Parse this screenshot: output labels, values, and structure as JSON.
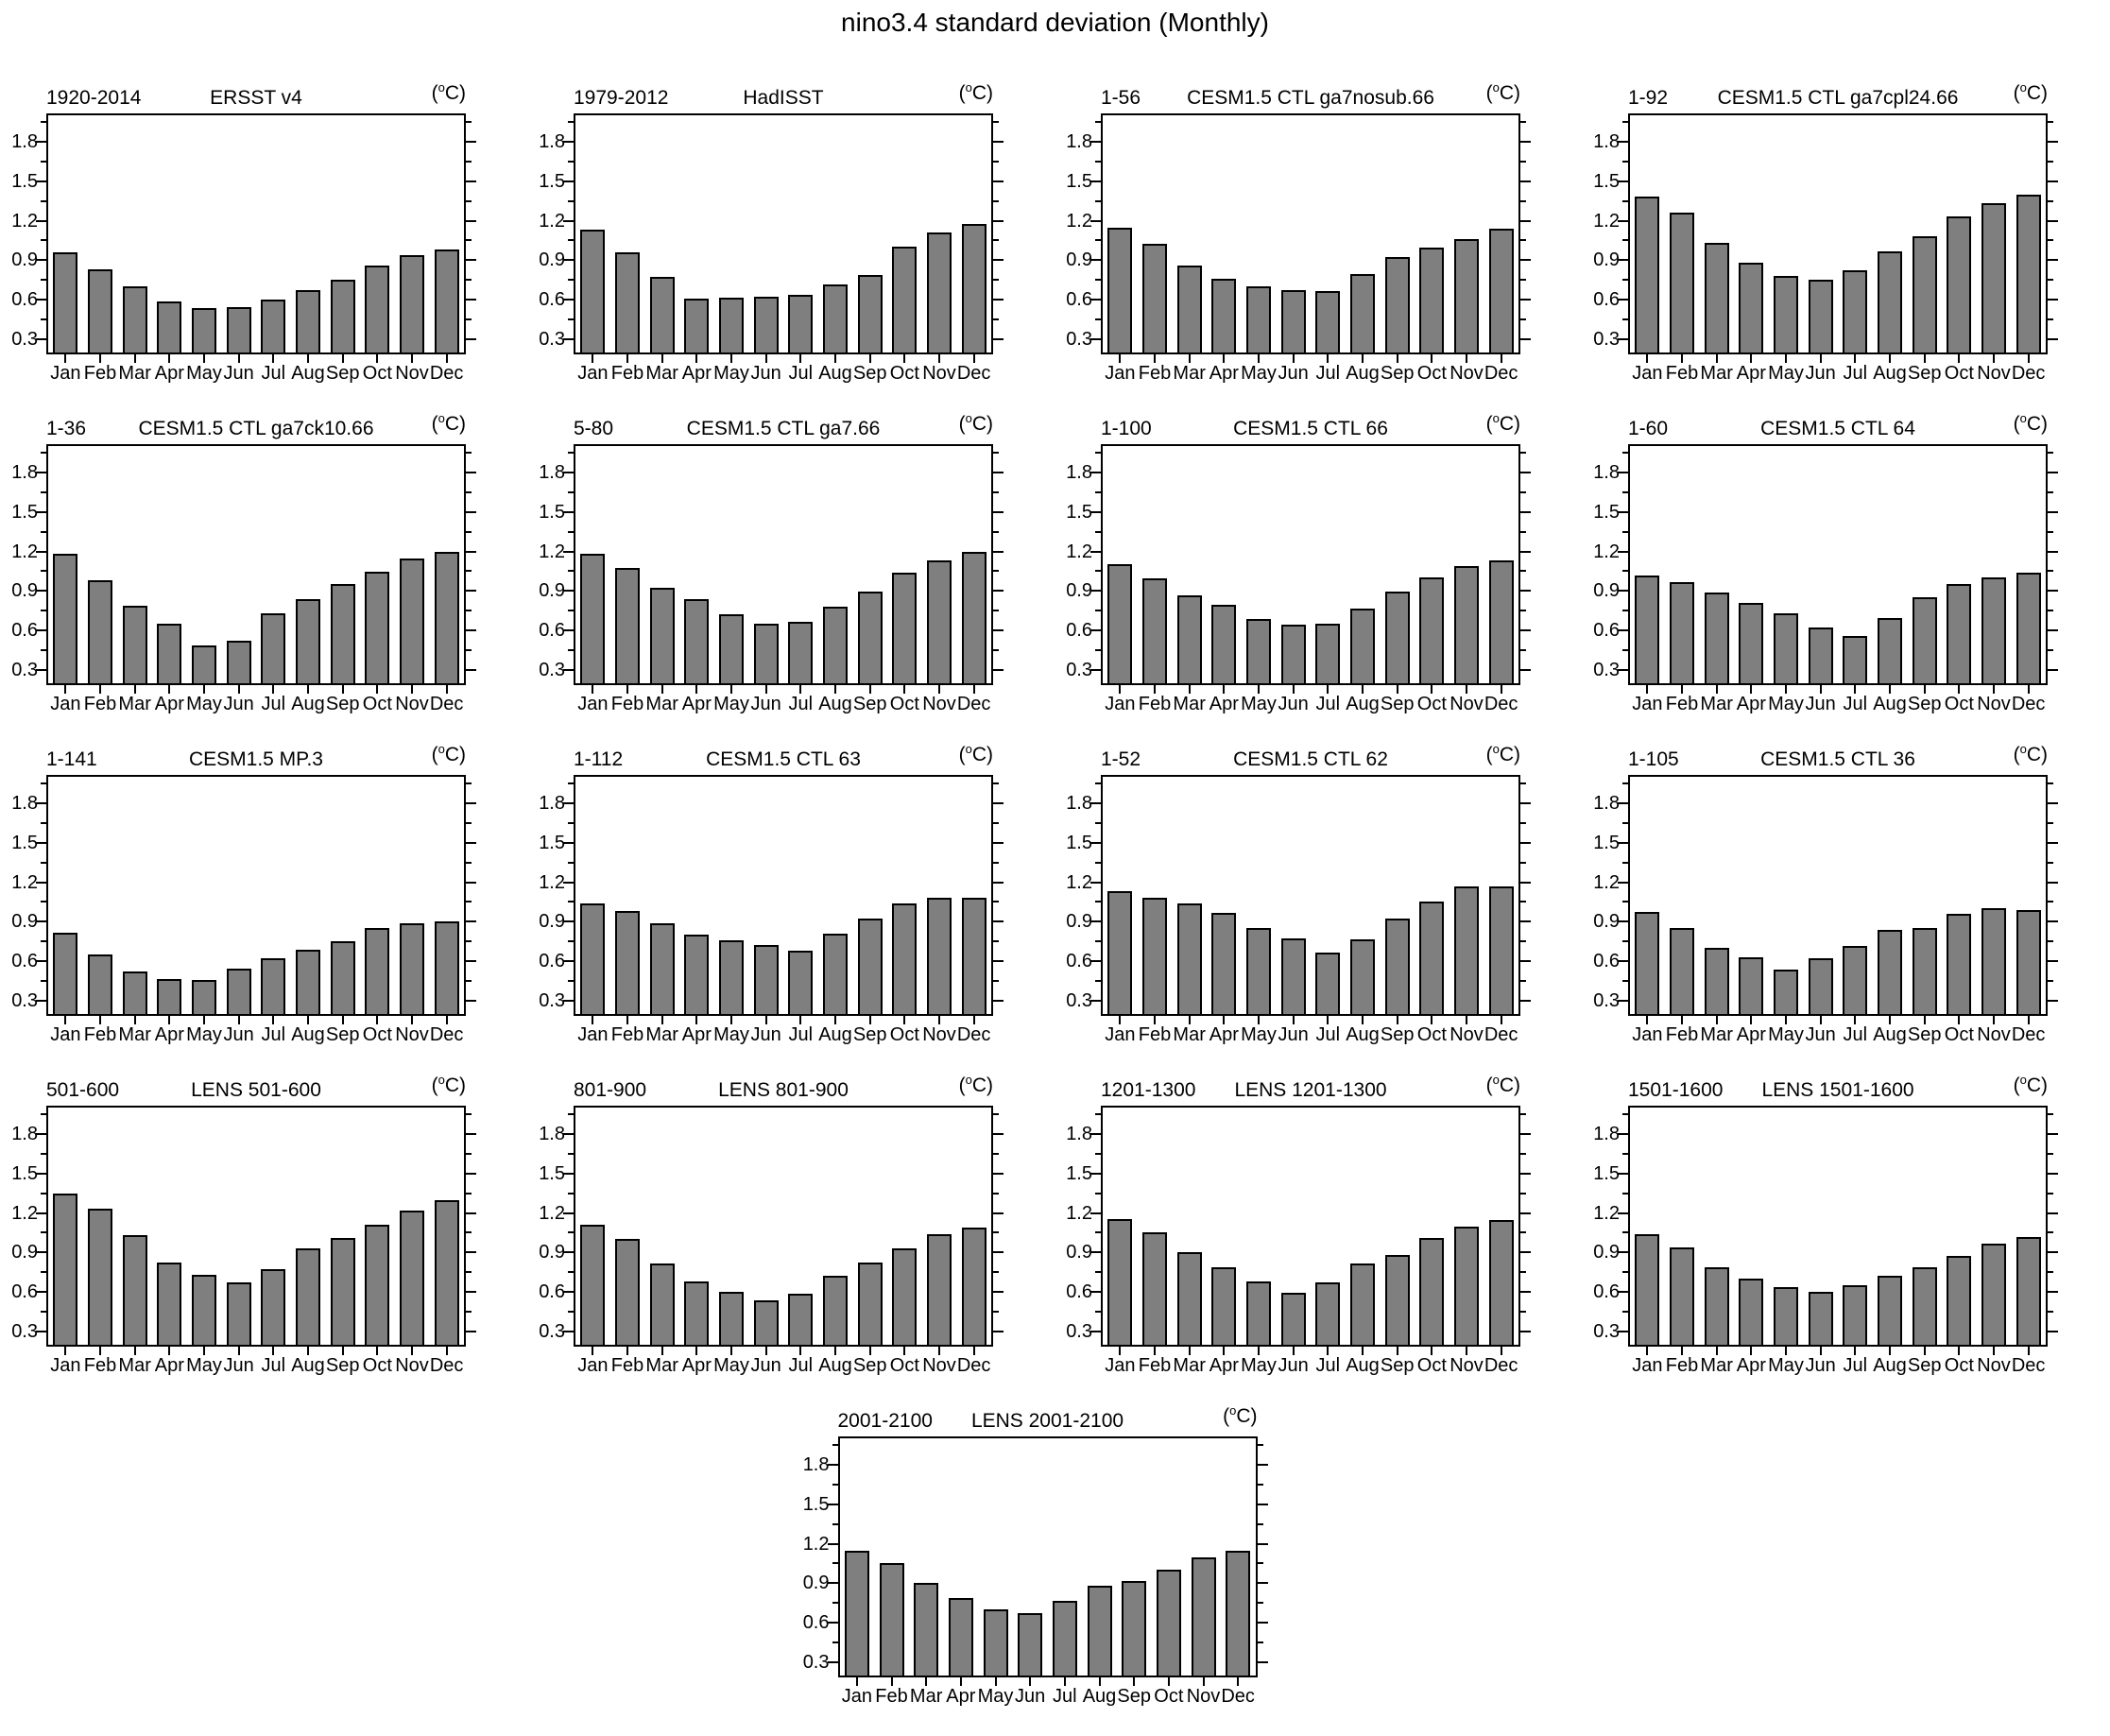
{
  "title": "nino3.4 standard deviation (Monthly)",
  "unit": {
    "open": "(",
    "sup": "o",
    "close": "C)"
  },
  "axis": {
    "min": 0.2,
    "max": 2.0,
    "major_ticks": [
      0.3,
      0.6,
      0.9,
      1.2,
      1.5,
      1.8
    ],
    "minor_ticks": [
      0.45,
      0.75,
      1.05,
      1.35,
      1.65,
      1.95
    ]
  },
  "bar_color": "#7f7f7f",
  "chart_data": {
    "type": "bar",
    "categories": [
      "Jan",
      "Feb",
      "Mar",
      "Apr",
      "May",
      "Jun",
      "Jul",
      "Aug",
      "Sep",
      "Oct",
      "Nov",
      "Dec"
    ],
    "ylabel": "(°C)",
    "ylim": [
      0.2,
      2.0
    ],
    "grid": false,
    "panels": [
      {
        "period": "1920-2014",
        "title": "ERSST v4",
        "values": [
          0.96,
          0.83,
          0.7,
          0.585,
          0.535,
          0.545,
          0.6,
          0.675,
          0.75,
          0.86,
          0.94,
          0.98
        ]
      },
      {
        "period": "1979-2012",
        "title": "HadISST",
        "values": [
          1.135,
          0.96,
          0.775,
          0.61,
          0.615,
          0.62,
          0.635,
          0.72,
          0.785,
          1.005,
          1.11,
          1.175
        ]
      },
      {
        "period": "1-56",
        "title": "CESM1.5 CTL ga7nosub.66",
        "values": [
          1.15,
          1.025,
          0.86,
          0.76,
          0.705,
          0.675,
          0.665,
          0.795,
          0.925,
          0.995,
          1.06,
          1.14
        ]
      },
      {
        "period": "1-92",
        "title": "CESM1.5 CTL ga7cpl24.66",
        "values": [
          1.38,
          1.26,
          1.035,
          0.88,
          0.78,
          0.75,
          0.825,
          0.97,
          1.085,
          1.235,
          1.335,
          1.395
        ]
      },
      {
        "period": "1-36",
        "title": "CESM1.5 CTL ga7ck10.66",
        "values": [
          1.185,
          0.98,
          0.79,
          0.65,
          0.485,
          0.525,
          0.73,
          0.835,
          0.955,
          1.045,
          1.15,
          1.2
        ]
      },
      {
        "period": "5-80",
        "title": "CESM1.5 CTL ga7.66",
        "values": [
          1.185,
          1.075,
          0.925,
          0.835,
          0.725,
          0.65,
          0.665,
          0.78,
          0.895,
          1.04,
          1.135,
          1.195
        ]
      },
      {
        "period": "1-100",
        "title": "CESM1.5 CTL 66",
        "values": [
          1.105,
          0.995,
          0.87,
          0.795,
          0.685,
          0.645,
          0.655,
          0.765,
          0.895,
          1.0,
          1.09,
          1.13
        ]
      },
      {
        "period": "1-60",
        "title": "CESM1.5 CTL 64",
        "values": [
          1.02,
          0.97,
          0.89,
          0.81,
          0.73,
          0.625,
          0.56,
          0.695,
          0.85,
          0.955,
          1.005,
          1.04
        ]
      },
      {
        "period": "1-141",
        "title": "CESM1.5 MP.3",
        "values": [
          0.82,
          0.65,
          0.525,
          0.465,
          0.46,
          0.545,
          0.625,
          0.685,
          0.75,
          0.855,
          0.89,
          0.905
        ]
      },
      {
        "period": "1-112",
        "title": "CESM1.5 CTL 63",
        "values": [
          1.04,
          0.98,
          0.89,
          0.8,
          0.76,
          0.725,
          0.68,
          0.81,
          0.925,
          1.04,
          1.085,
          1.08
        ]
      },
      {
        "period": "1-52",
        "title": "CESM1.5 CTL 62",
        "values": [
          1.13,
          1.08,
          1.04,
          0.97,
          0.85,
          0.775,
          0.665,
          0.77,
          0.925,
          1.05,
          1.17,
          1.17
        ]
      },
      {
        "period": "1-105",
        "title": "CESM1.5 CTL 36",
        "values": [
          0.975,
          0.85,
          0.705,
          0.63,
          0.54,
          0.62,
          0.72,
          0.84,
          0.85,
          0.96,
          1.0,
          0.99
        ]
      },
      {
        "period": "501-600",
        "title": "LENS 501-600",
        "values": [
          1.35,
          1.235,
          1.03,
          0.825,
          0.73,
          0.67,
          0.775,
          0.93,
          1.01,
          1.11,
          1.22,
          1.3
        ]
      },
      {
        "period": "801-900",
        "title": "LENS 801-900",
        "values": [
          1.11,
          1.0,
          0.82,
          0.68,
          0.605,
          0.54,
          0.585,
          0.725,
          0.825,
          0.93,
          1.04,
          1.09
        ]
      },
      {
        "period": "1201-1300",
        "title": "LENS 1201-1300",
        "values": [
          1.155,
          1.055,
          0.905,
          0.79,
          0.68,
          0.595,
          0.67,
          0.815,
          0.88,
          1.01,
          1.1,
          1.145
        ]
      },
      {
        "period": "1501-1600",
        "title": "LENS 1501-1600",
        "values": [
          1.04,
          0.94,
          0.785,
          0.705,
          0.635,
          0.605,
          0.65,
          0.725,
          0.79,
          0.875,
          0.965,
          1.015
        ]
      },
      {
        "period": "2001-2100",
        "title": "LENS 2001-2100",
        "values": [
          1.15,
          1.05,
          0.9,
          0.785,
          0.705,
          0.67,
          0.765,
          0.88,
          0.92,
          1.0,
          1.1,
          1.15
        ]
      }
    ],
    "rows": [
      [
        0,
        1,
        2,
        3
      ],
      [
        4,
        5,
        6,
        7
      ],
      [
        8,
        9,
        10,
        11
      ],
      [
        12,
        13,
        14,
        15
      ],
      [
        16
      ]
    ]
  }
}
